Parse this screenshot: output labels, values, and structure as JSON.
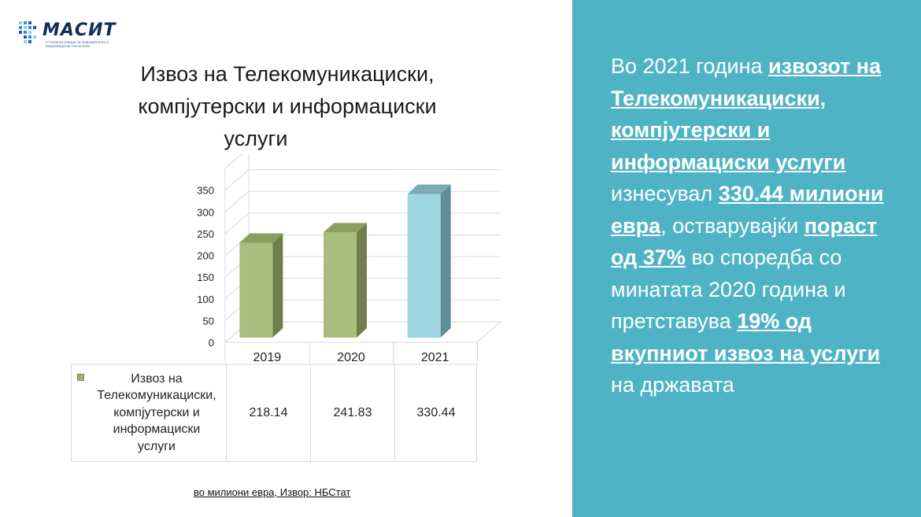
{
  "logo": {
    "name": "МАСИТ",
    "subtitle": "Стопанска комора за информатичке и комуникациски технологии"
  },
  "title": {
    "line1": "Извоз на Телекомуникациски,",
    "line2": "компјутерски и информациски",
    "line3": "услуги"
  },
  "chart_data": {
    "type": "bar",
    "categories": [
      "2019",
      "2020",
      "2021"
    ],
    "series": [
      {
        "name": "Извоз на Телекомуникациски, компјутерски и информациски услуги",
        "values": [
          218.14,
          241.83,
          330.44
        ]
      }
    ],
    "value_labels": [
      "218.14",
      "241.83",
      "330.44"
    ],
    "yticks": [
      "0",
      "50",
      "100",
      "150",
      "200",
      "250",
      "300",
      "350"
    ],
    "ylim": [
      0,
      400
    ],
    "grid": true,
    "bar_colors": [
      "#a9bd7c",
      "#a9bd7c",
      "#9dd5e1"
    ],
    "bar_side_colors": [
      "#6f7e4b",
      "#6f7e4b",
      "#5f8e98"
    ],
    "bar_top_colors": [
      "#8c9e5f",
      "#8c9e5f",
      "#7eaab5"
    ]
  },
  "legend_lines": [
    "Извоз на",
    "Телекомуникациски,",
    "компјутерски и",
    "информациски",
    "услуги"
  ],
  "source": {
    "prefix": "во милиони евра, ",
    "label": "Извор",
    "suffix": ": НБСтат"
  },
  "panel": {
    "p1": "Во 2021 година ",
    "p2": "извозот на Телекомуникациски, компјутерски и информациски услуги",
    "p3": " изнесувал ",
    "p4": "330.44 милиони евра",
    "p5": ", остварувајќи ",
    "p6": "пораст од 37%",
    "p7": " во споредба со минатата 2020 година и претставува ",
    "p8": "19% од вкупниот извоз на услуги ",
    "p9": "на државата"
  },
  "colors": {
    "panel_bg": "#4fb3c6",
    "logo_blue": "#0f2d55"
  }
}
